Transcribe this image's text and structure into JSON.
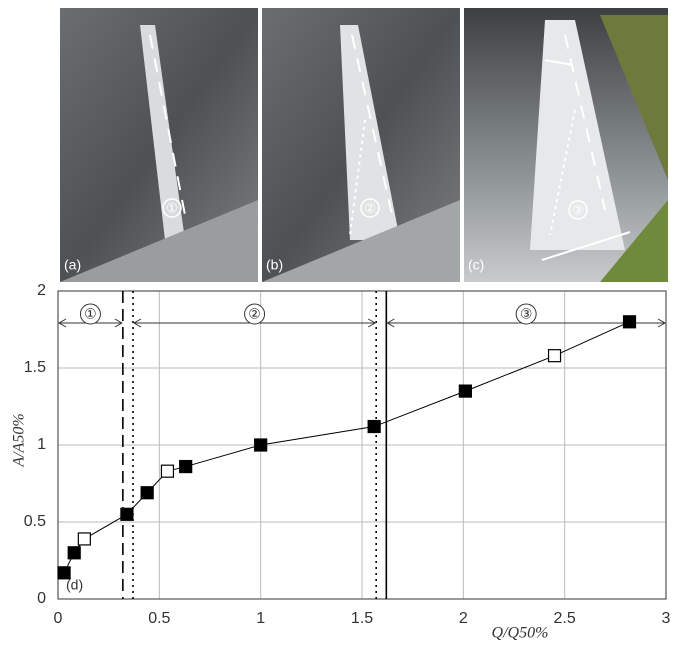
{
  "photos": [
    {
      "label": "(a)",
      "marker": "①"
    },
    {
      "label": "(b)",
      "marker": "②"
    },
    {
      "label": "(c)",
      "marker": "③"
    }
  ],
  "chart_data": {
    "type": "line",
    "x_label": "Q/Q50%",
    "y_label": "A/A50%",
    "annotation": "(d)",
    "x": [
      0.03,
      0.08,
      0.13,
      0.34,
      0.44,
      0.54,
      0.63,
      1.0,
      1.56,
      2.01,
      2.45,
      2.82
    ],
    "values": [
      0.17,
      0.3,
      0.39,
      0.55,
      0.69,
      0.83,
      0.86,
      1.0,
      1.12,
      1.35,
      1.58,
      1.8
    ],
    "markers": [
      "filled",
      "filled",
      "open",
      "filled",
      "filled",
      "open",
      "filled",
      "filled",
      "filled",
      "filled",
      "open",
      "filled"
    ],
    "color": "#000000",
    "xlim": [
      0,
      3
    ],
    "ylim": [
      0,
      2
    ],
    "xticks": [
      0,
      0.5,
      1,
      1.5,
      2,
      2.5,
      3
    ],
    "yticks": [
      0,
      0.5,
      1,
      1.5,
      2
    ],
    "grid": true,
    "vlines": [
      {
        "x": 0.32,
        "style": "dashed"
      },
      {
        "x": 0.37,
        "style": "dotted"
      },
      {
        "x": 1.57,
        "style": "dotted"
      },
      {
        "x": 1.62,
        "style": "solid"
      }
    ],
    "regions": [
      {
        "label": "①",
        "range": [
          0,
          0.32
        ]
      },
      {
        "label": "②",
        "range": [
          0.37,
          1.57
        ]
      },
      {
        "label": "③",
        "range": [
          1.62,
          3
        ]
      }
    ]
  }
}
